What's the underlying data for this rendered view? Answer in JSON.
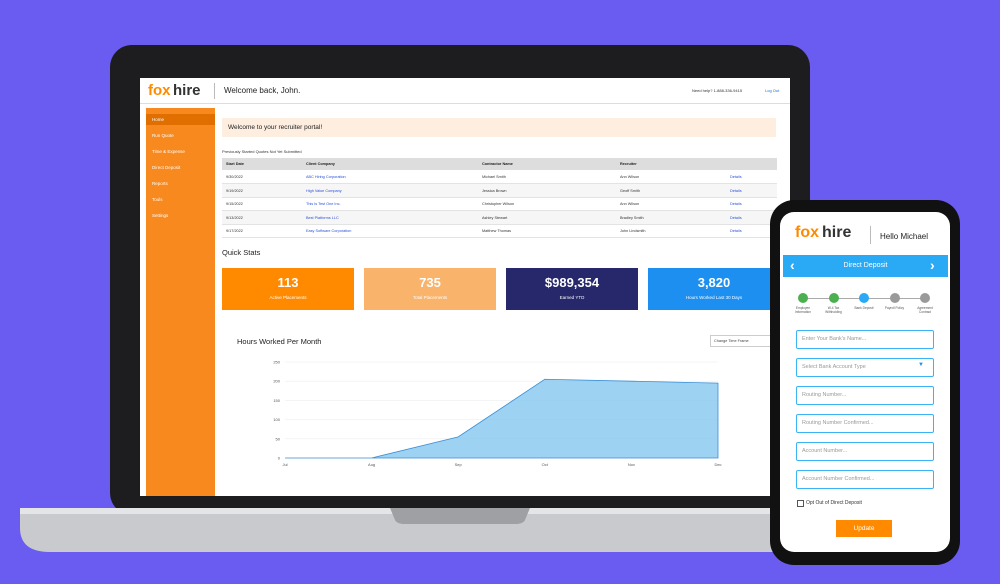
{
  "header": {
    "logo": {
      "part1": "fox",
      "part2": "hire"
    },
    "welcome": "Welcome back, John.",
    "help": "Need help? 1-888-336-9415",
    "logout": "Log Out"
  },
  "sidebar": {
    "items": [
      "Home",
      "Run Quote",
      "Time & Expense",
      "Direct Deposit",
      "Reports",
      "Tools",
      "Settings"
    ]
  },
  "dashboard": {
    "banner": "Welcome to your recruiter portal!",
    "table_caption": "Previously Started Quotes Not Yet Submitted",
    "table": {
      "headers": [
        "Start Date",
        "Client Company",
        "Contractor Name",
        "Recruiter",
        ""
      ],
      "rows": [
        [
          "9/30/2022",
          "ABC Hiring Corporation",
          "Michael Smith",
          "Ann Wilson",
          "Details"
        ],
        [
          "9/19/2022",
          "High Value Company",
          "Jessica Brown",
          "Geoff Smith",
          "Details"
        ],
        [
          "9/15/2022",
          "This Is Test One Inc.",
          "Christopher Wilson",
          "Ann Wilson",
          "Details"
        ],
        [
          "9/13/2022",
          "Best Platforms LLC",
          "Ashley Stewart",
          "Bradley Smith",
          "Details"
        ],
        [
          "9/17/2022",
          "Easy Software Corporation",
          "Matthew Thomas",
          "John Lindsmith",
          "Details"
        ]
      ]
    },
    "quick_stats_title": "Quick Stats",
    "stats": [
      {
        "value": "113",
        "label": "Active Placements",
        "color": "#ff8a00"
      },
      {
        "value": "735",
        "label": "Total Placements",
        "color": "#f9b36b"
      },
      {
        "value": "$989,354",
        "label": "Earned YTD",
        "color": "#26286b"
      },
      {
        "value": "3,820",
        "label": "Hours Worked Last 30 Days",
        "color": "#1c8ff0"
      }
    ],
    "chart": {
      "title": "Hours Worked Per Month",
      "dropdown": "Change Time Frame",
      "categories": [
        "Jul",
        "Aug",
        "Sep",
        "Oct",
        "Nov",
        "Dec"
      ],
      "values": [
        0,
        0,
        55,
        205,
        200,
        195
      ],
      "ylim": [
        0,
        250
      ],
      "yticks": [
        0,
        50,
        100,
        150,
        200,
        250
      ],
      "color": "#7cc3ee",
      "grid": true
    }
  },
  "phone": {
    "logo": {
      "part1": "fox",
      "part2": "hire"
    },
    "greeting": "Hello Michael",
    "bar_title": "Direct Deposit",
    "steps": [
      "Employee Information",
      "W-4 Tax Withholding",
      "Bank Deposit",
      "Payroll Policy",
      "Agreement Contract"
    ],
    "fields": [
      "Enter Your Bank's Name...",
      "Select Bank Account Type",
      "Routing Number...",
      "Routing Number Confirmed...",
      "Account Number...",
      "Account Number Confirmed..."
    ],
    "checkbox": "Opt Out of Direct Deposit",
    "button": "Update"
  }
}
